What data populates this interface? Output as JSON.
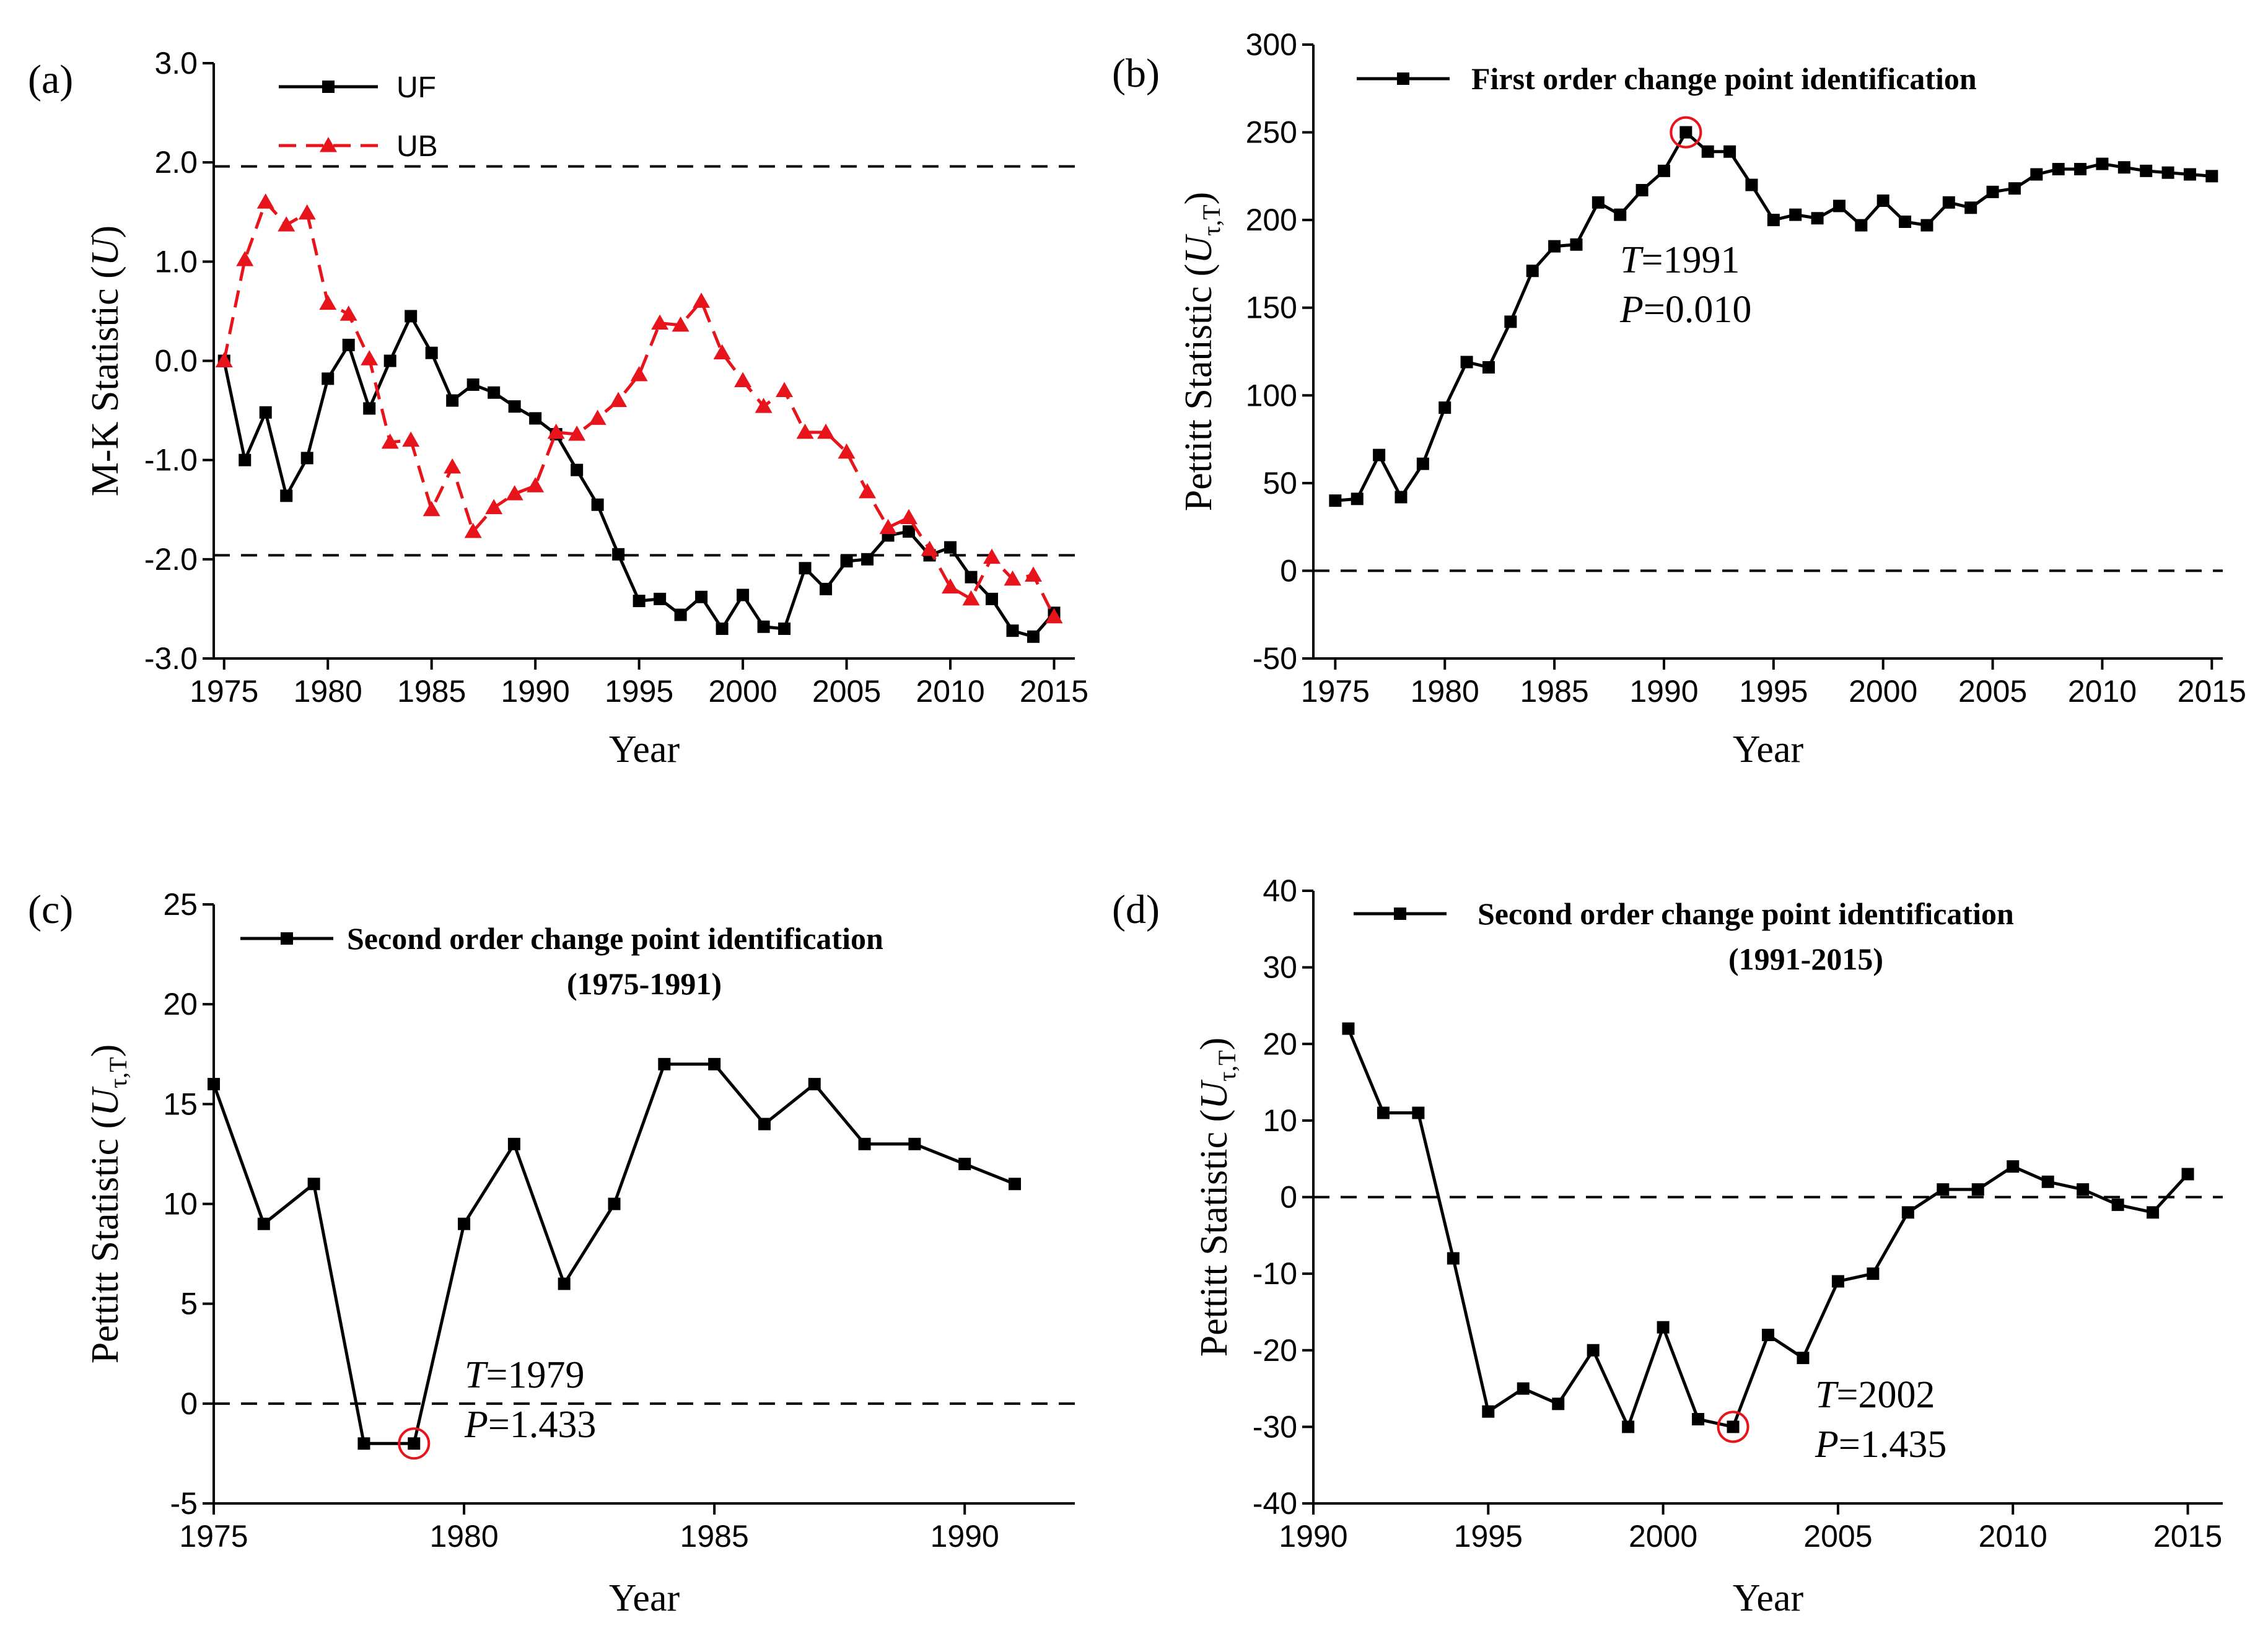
{
  "chart_data": [
    {
      "panel": "(a)",
      "type": "line",
      "xlabel": "Year",
      "ylabel": "M-K Statistic (U)",
      "xlim": [
        1974.5,
        2016
      ],
      "ylim": [
        -3.0,
        3.0
      ],
      "xticks": [
        1975,
        1980,
        1985,
        1990,
        1995,
        2000,
        2005,
        2010,
        2015
      ],
      "yticks": [
        -3.0,
        -2.0,
        -1.0,
        0.0,
        1.0,
        2.0,
        3.0
      ],
      "ytick_labels": [
        "-3.0",
        "-2.0",
        "-1.0",
        "0.0",
        "1.0",
        "2.0",
        "3.0"
      ],
      "reference_lines": [
        1.96,
        -1.96
      ],
      "legend_position": "top-left",
      "x": [
        1975,
        1976,
        1977,
        1978,
        1979,
        1980,
        1981,
        1982,
        1983,
        1984,
        1985,
        1986,
        1987,
        1988,
        1989,
        1990,
        1991,
        1992,
        1993,
        1994,
        1995,
        1996,
        1997,
        1998,
        1999,
        2000,
        2001,
        2002,
        2003,
        2004,
        2005,
        2006,
        2007,
        2008,
        2009,
        2010,
        2011,
        2012,
        2013,
        2014,
        2015
      ],
      "series": [
        {
          "name": "UF",
          "color": "#000000",
          "marker": "square",
          "dash": "solid",
          "values": [
            0.0,
            -1.0,
            -0.52,
            -1.36,
            -0.98,
            -0.18,
            0.16,
            -0.48,
            0.0,
            0.45,
            0.08,
            -0.4,
            -0.24,
            -0.32,
            -0.46,
            -0.58,
            -0.74,
            -1.1,
            -1.45,
            -1.95,
            -2.42,
            -2.4,
            -2.56,
            -2.38,
            -2.7,
            -2.36,
            -2.68,
            -2.7,
            -2.09,
            -2.3,
            -2.02,
            -2.0,
            -1.76,
            -1.72,
            -1.96,
            -1.88,
            -2.18,
            -2.4,
            -2.72,
            -2.78,
            -2.54
          ]
        },
        {
          "name": "UB",
          "color": "#e8141b",
          "marker": "triangle",
          "dash": "dashed",
          "values": [
            0.0,
            1.02,
            1.6,
            1.37,
            1.49,
            0.58,
            0.47,
            0.02,
            -0.82,
            -0.8,
            -1.5,
            -1.07,
            -1.72,
            -1.48,
            -1.34,
            -1.26,
            -0.72,
            -0.74,
            -0.58,
            -0.4,
            -0.14,
            0.38,
            0.36,
            0.6,
            0.08,
            -0.2,
            -0.46,
            -0.3,
            -0.72,
            -0.72,
            -0.92,
            -1.32,
            -1.68,
            -1.58,
            -1.9,
            -2.28,
            -2.4,
            -1.98,
            -2.2,
            -2.16,
            -2.58
          ]
        }
      ]
    },
    {
      "panel": "(b)",
      "type": "line",
      "xlabel": "Year",
      "ylabel_main": "Pettitt Statistic (",
      "ylabel_var": "U",
      "ylabel_sub": "τ,T",
      "ylabel_end": ")",
      "xlim": [
        1974,
        2015.5
      ],
      "ylim": [
        -50,
        300
      ],
      "xticks": [
        1975,
        1980,
        1985,
        1990,
        1995,
        2000,
        2005,
        2010,
        2015
      ],
      "yticks": [
        -50,
        0,
        50,
        100,
        150,
        200,
        250,
        300
      ],
      "ytick_labels": [
        "-50",
        "0",
        "50",
        "100",
        "150",
        "200",
        "250",
        "300"
      ],
      "reference_lines": [
        0
      ],
      "legend_position": "top-left",
      "legend_label": "First order change point identification",
      "annotation": {
        "T_label": "T",
        "T_value": "=1991",
        "P_label": "P",
        "P_value": "=0.010"
      },
      "highlight_year": 1991,
      "x": [
        1975,
        1976,
        1977,
        1978,
        1979,
        1980,
        1981,
        1982,
        1983,
        1984,
        1985,
        1986,
        1987,
        1988,
        1989,
        1990,
        1991,
        1992,
        1993,
        1994,
        1995,
        1996,
        1997,
        1998,
        1999,
        2000,
        2001,
        2002,
        2003,
        2004,
        2005,
        2006,
        2007,
        2008,
        2009,
        2010,
        2011,
        2012,
        2013,
        2014,
        2015
      ],
      "values": [
        40,
        41,
        66,
        42,
        61,
        93,
        119,
        116,
        142,
        171,
        185,
        186,
        210,
        203,
        217,
        228,
        250,
        239,
        239,
        220,
        200,
        203,
        201,
        208,
        197,
        211,
        199,
        197,
        210,
        207,
        216,
        218,
        226,
        229,
        229,
        232,
        230,
        228,
        227,
        226,
        225
      ]
    },
    {
      "panel": "(c)",
      "type": "line",
      "xlabel": "Year",
      "ylabel_main": "Pettitt Statistic (",
      "ylabel_var": "U",
      "ylabel_sub": "τ,T",
      "ylabel_end": ")",
      "xlim": [
        1975,
        1992.2
      ],
      "ylim": [
        -5,
        25
      ],
      "xticks": [
        1975,
        1980,
        1985,
        1990
      ],
      "yticks": [
        -5,
        0,
        5,
        10,
        15,
        20,
        25
      ],
      "ytick_labels": [
        "-5",
        "0",
        "5",
        "10",
        "15",
        "20",
        "25"
      ],
      "reference_lines": [
        0
      ],
      "legend_position": "top-center",
      "legend_label": "Second order change point identification",
      "legend_sub": "(1975-1991)",
      "annotation": {
        "T_label": "T",
        "T_value": "=1979",
        "P_label": "P",
        "P_value": "=1.433"
      },
      "highlight_year": 1979,
      "x": [
        1975,
        1976,
        1977,
        1978,
        1979,
        1980,
        1981,
        1982,
        1983,
        1984,
        1985,
        1986,
        1987,
        1988,
        1989,
        1990,
        1991
      ],
      "values": [
        16,
        9,
        11,
        -2,
        -2,
        9,
        13,
        6,
        10,
        17,
        17,
        14,
        16,
        13,
        13,
        12,
        11
      ]
    },
    {
      "panel": "(d)",
      "type": "line",
      "xlabel": "Year",
      "ylabel_main": "Pettitt Statistic (",
      "ylabel_var": "U",
      "ylabel_sub": "τ,T",
      "ylabel_end": ")",
      "xlim": [
        1990,
        2016
      ],
      "ylim": [
        -40,
        40
      ],
      "xticks": [
        1990,
        1995,
        2000,
        2005,
        2010,
        2015
      ],
      "yticks": [
        -40,
        -30,
        -20,
        -10,
        0,
        10,
        20,
        30,
        40
      ],
      "ytick_labels": [
        "-40",
        "-30",
        "-20",
        "-10",
        "0",
        "10",
        "20",
        "30",
        "40"
      ],
      "reference_lines": [
        0
      ],
      "legend_position": "top-left",
      "legend_label": "Second order change point identification",
      "legend_sub": "(1991-2015)",
      "annotation": {
        "T_label": "T",
        "T_value": "=2002",
        "P_label": "P",
        "P_value": "=1.435"
      },
      "highlight_year": 2002,
      "x": [
        1991,
        1992,
        1993,
        1994,
        1995,
        1996,
        1997,
        1998,
        1999,
        2000,
        2001,
        2002,
        2003,
        2004,
        2005,
        2006,
        2007,
        2008,
        2009,
        2010,
        2011,
        2012,
        2013,
        2014,
        2015
      ],
      "values": [
        22,
        11,
        11,
        -8,
        -28,
        -25,
        -27,
        -20,
        -30,
        -17,
        -29,
        -30,
        -18,
        -21,
        -11,
        -10,
        -2,
        1,
        1,
        4,
        2,
        1,
        -1,
        -2,
        3
      ]
    }
  ]
}
